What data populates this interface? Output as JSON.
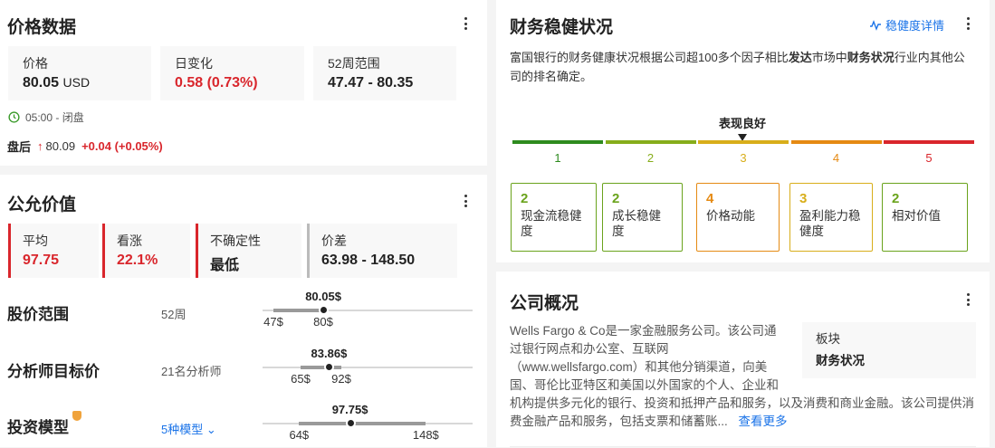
{
  "price_data": {
    "title": "价格数据",
    "stats": [
      {
        "label": "价格",
        "value": "80.05",
        "unit": "USD"
      },
      {
        "label": "日变化",
        "value": "0.58 (0.73%)"
      },
      {
        "label": "52周范围",
        "value": "47.47 - 80.35"
      }
    ],
    "status": "05:00 - 闭盘",
    "after_hours": {
      "label": "盘后",
      "price": "80.09",
      "change": "+0.04 (+0.05%)"
    }
  },
  "fair_value": {
    "title": "公允价值",
    "stats": [
      {
        "label": "平均",
        "value": "97.75"
      },
      {
        "label": "看涨",
        "value": "22.1%"
      },
      {
        "label": "不确定性",
        "value": "最低"
      },
      {
        "label": "价差",
        "value": "63.98 - 148.50"
      }
    ],
    "rows": [
      {
        "label": "股价范围",
        "sub": "52周",
        "current": 80.05,
        "current_label": "80.05$",
        "low": 47,
        "high": 80,
        "low_label": "47$",
        "high_label": "80$"
      },
      {
        "label": "分析师目标价",
        "sub": "21名分析师",
        "current": 83.86,
        "current_label": "83.86$",
        "low": 65,
        "high": 92,
        "low_label": "65$",
        "high_label": "92$"
      },
      {
        "label": "投资模型",
        "sub": "5种模型",
        "current": 97.75,
        "current_label": "97.75$",
        "low": 64,
        "high": 148,
        "low_label": "64$",
        "high_label": "148$"
      }
    ]
  },
  "health": {
    "title": "财务稳健状况",
    "details_link": "稳健度详情",
    "desc_parts": [
      "富国银行的财务健康状况根据公司超100多个因子相比",
      "发达",
      "市场中",
      "财务状况",
      "行业内其他公司的排名确定。"
    ],
    "rating_label": "表现良好",
    "rating": 3,
    "scale": [
      {
        "n": "1",
        "color": "#2e8b1e"
      },
      {
        "n": "2",
        "color": "#86ad1b"
      },
      {
        "n": "3",
        "color": "#d8ae1a"
      },
      {
        "n": "4",
        "color": "#e58a13"
      },
      {
        "n": "5",
        "color": "#d9262c"
      }
    ],
    "cards": [
      {
        "score": "2",
        "label": "现金流稳健度",
        "color": "#6aa31c"
      },
      {
        "score": "2",
        "label": "成长稳健度",
        "color": "#6aa31c"
      },
      {
        "score": "4",
        "label": "价格动能",
        "color": "#e58a13"
      },
      {
        "score": "3",
        "label": "盈利能力稳健度",
        "color": "#d8ae1a"
      },
      {
        "score": "2",
        "label": "相对价值",
        "color": "#6aa31c"
      }
    ]
  },
  "profile": {
    "title": "公司概况",
    "text": "Wells Fargo & Co是一家金融服务公司。该公司通过银行网点和办公室、互联网（www.wellsfargo.com）和其他分销渠道，向美国、哥伦比亚特区和美国以外国家的个人、企业和机构提供多元化的银行、投资和抵押产品和服务，以及消费和商业金融。该公司提供消费金融产品和服务，包括支票和储蓄账...",
    "sector_label": "板块",
    "sector": "财务状况",
    "more": "查看更多"
  }
}
